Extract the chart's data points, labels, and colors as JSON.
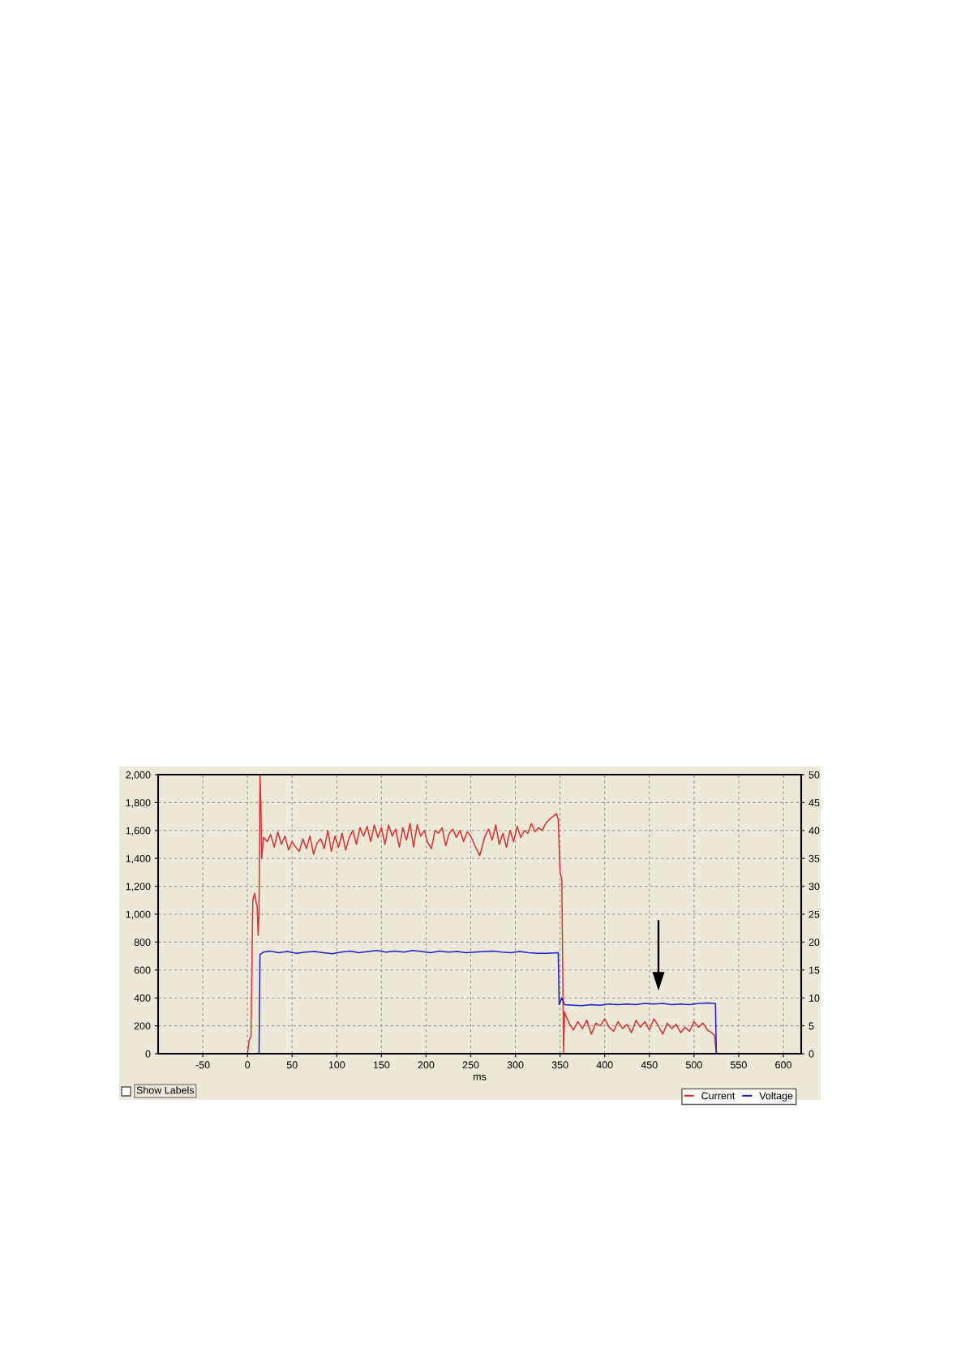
{
  "chart_data": {
    "type": "line",
    "xlabel": "ms",
    "legend": "bottom right",
    "grid": true,
    "line_style": "solid",
    "marker": "none",
    "xlim": [
      -100,
      620
    ],
    "xticks": [
      -50,
      0,
      50,
      100,
      150,
      200,
      250,
      300,
      350,
      400,
      450,
      500,
      550,
      600
    ],
    "ylim": [
      0,
      2000
    ],
    "yticks": [
      0,
      {
        "value": 200,
        "label": "200"
      },
      {
        "value": 400,
        "label": "400"
      },
      {
        "value": 600,
        "label": "600"
      },
      {
        "value": 800,
        "label": "800"
      },
      {
        "value": 1000,
        "label": "1,000"
      },
      {
        "value": 1200,
        "label": "1,200"
      },
      {
        "value": 1400,
        "label": "1,400"
      },
      {
        "value": 1600,
        "label": "1,600"
      },
      {
        "value": 1800,
        "label": "1,800"
      },
      {
        "value": 2000,
        "label": "2,000"
      }
    ],
    "y2lim": [
      0,
      50
    ],
    "y2ticks": [
      0,
      5,
      10,
      15,
      20,
      25,
      30,
      35,
      40,
      45,
      50
    ],
    "annotations": [
      "Show Labels"
    ],
    "series": [
      {
        "name": "Current",
        "color": "#e03030",
        "x": [
          0,
          2,
          4,
          6,
          8,
          10,
          11,
          12,
          13,
          14,
          15,
          16,
          18,
          22,
          26,
          30,
          34,
          38,
          42,
          46,
          50,
          54,
          58,
          62,
          66,
          70,
          74,
          78,
          82,
          86,
          90,
          94,
          98,
          102,
          106,
          110,
          114,
          118,
          122,
          126,
          130,
          134,
          138,
          142,
          146,
          150,
          154,
          158,
          162,
          166,
          170,
          174,
          178,
          182,
          186,
          190,
          194,
          198,
          202,
          206,
          210,
          214,
          218,
          222,
          226,
          230,
          234,
          238,
          242,
          246,
          250,
          254,
          260,
          266,
          270,
          274,
          278,
          282,
          286,
          290,
          294,
          298,
          302,
          306,
          310,
          314,
          318,
          322,
          326,
          330,
          334,
          338,
          342,
          346,
          348,
          350,
          352,
          354,
          355,
          356,
          360,
          365,
          370,
          375,
          380,
          385,
          390,
          395,
          400,
          405,
          410,
          415,
          420,
          425,
          430,
          435,
          440,
          445,
          450,
          455,
          460,
          465,
          470,
          475,
          480,
          485,
          490,
          495,
          500,
          505,
          510,
          515,
          520,
          523,
          525
        ],
        "values": [
          0,
          100,
          120,
          1100,
          1150,
          1080,
          1050,
          850,
          1000,
          2000,
          1800,
          1400,
          1550,
          1520,
          1570,
          1480,
          1590,
          1500,
          1560,
          1460,
          1520,
          1480,
          1450,
          1540,
          1470,
          1560,
          1430,
          1510,
          1540,
          1470,
          1600,
          1450,
          1560,
          1480,
          1580,
          1460,
          1550,
          1600,
          1500,
          1620,
          1560,
          1630,
          1520,
          1640,
          1550,
          1620,
          1500,
          1640,
          1560,
          1610,
          1480,
          1620,
          1530,
          1650,
          1480,
          1640,
          1560,
          1600,
          1510,
          1470,
          1600,
          1580,
          1620,
          1490,
          1580,
          1610,
          1550,
          1600,
          1520,
          1590,
          1560,
          1500,
          1420,
          1560,
          1610,
          1530,
          1640,
          1500,
          1580,
          1480,
          1600,
          1520,
          1630,
          1550,
          1600,
          1580,
          1650,
          1590,
          1620,
          1600,
          1650,
          1680,
          1700,
          1720,
          1680,
          1300,
          1250,
          0,
          300,
          280,
          220,
          170,
          230,
          180,
          240,
          140,
          220,
          200,
          250,
          190,
          160,
          230,
          180,
          210,
          150,
          240,
          190,
          230,
          170,
          250,
          200,
          140,
          220,
          180,
          210,
          150,
          190,
          160,
          230,
          190,
          220,
          170,
          150,
          130,
          0
        ]
      },
      {
        "name": "Voltage",
        "color": "#2020c8",
        "axis": "y2",
        "x": [
          13,
          14,
          18,
          25,
          35,
          45,
          55,
          65,
          75,
          85,
          95,
          105,
          115,
          125,
          135,
          145,
          155,
          165,
          175,
          185,
          195,
          205,
          215,
          225,
          235,
          245,
          255,
          265,
          275,
          285,
          295,
          305,
          315,
          325,
          335,
          348,
          349,
          352,
          355,
          365,
          375,
          385,
          395,
          405,
          415,
          425,
          435,
          445,
          455,
          465,
          475,
          485,
          495,
          505,
          515,
          524,
          525
        ],
        "values": [
          0,
          17.8,
          18.2,
          18.4,
          18.1,
          18.3,
          18.0,
          18.2,
          18.3,
          18.1,
          17.9,
          18.2,
          18.4,
          18.1,
          18.3,
          18.5,
          18.2,
          18.4,
          18.2,
          18.5,
          18.3,
          18.1,
          18.4,
          18.2,
          18.3,
          18.1,
          18.2,
          18.3,
          18.4,
          18.2,
          18.1,
          18.3,
          18.1,
          18.0,
          18.0,
          18.1,
          8.8,
          10.0,
          8.8,
          8.7,
          8.6,
          8.8,
          8.7,
          8.9,
          8.8,
          8.9,
          8.8,
          9.0,
          8.9,
          9.0,
          8.8,
          8.9,
          8.8,
          9.0,
          9.1,
          9.0,
          0
        ]
      }
    ]
  }
}
